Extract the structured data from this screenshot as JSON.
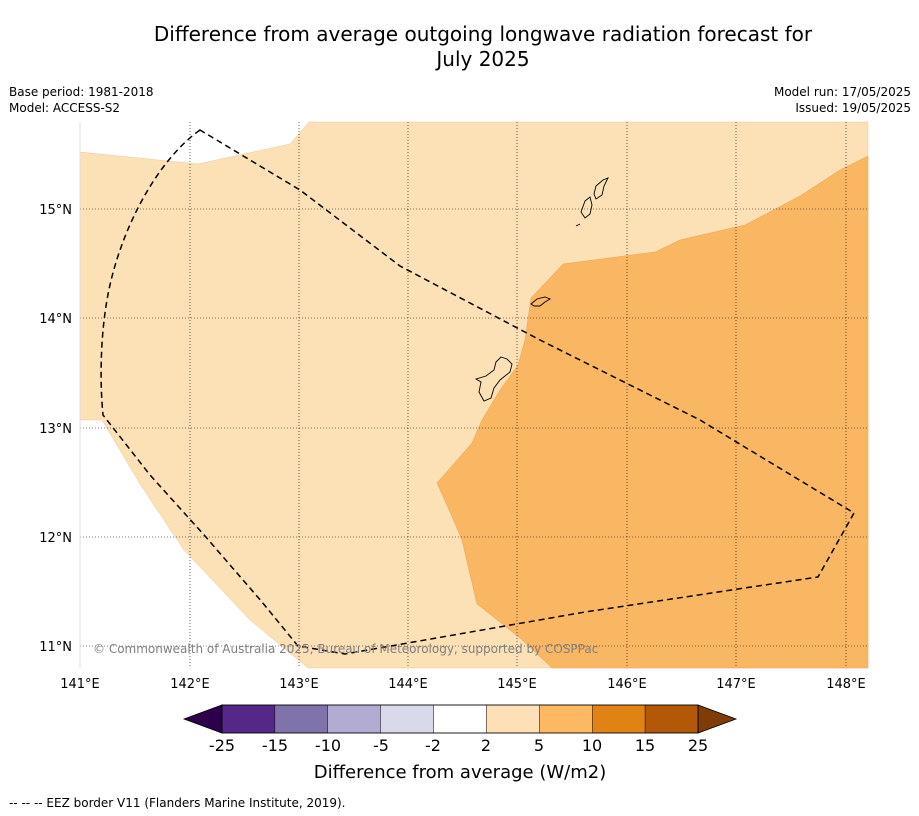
{
  "title": {
    "line1": "Difference from average outgoing longwave radiation forecast for",
    "line2": "July 2025"
  },
  "meta": {
    "base_period": "Base period: 1981-2018",
    "model": "Model: ACCESS-S2",
    "model_run": "Model run: 17/05/2025",
    "issued": "Issued: 19/05/2025"
  },
  "map": {
    "lon_ticks": [
      "141°E",
      "142°E",
      "143°E",
      "144°E",
      "145°E",
      "146°E",
      "147°E",
      "148°E"
    ],
    "lat_ticks": [
      "15°N",
      "14°N",
      "13°N",
      "12°N",
      "11°N"
    ],
    "copyright": "© Commonwealth of Australia 2025, Bureau of Meteorology, supported by COSPPac",
    "colors": {
      "band_2_5": "#fce0b6",
      "band_5_10": "#f9b764",
      "coast": "#000000",
      "eez": "#000000"
    }
  },
  "colorbar": {
    "labels": [
      "-25",
      "-15",
      "-10",
      "-5",
      "-2",
      "2",
      "5",
      "10",
      "15",
      "25"
    ],
    "colors": [
      "#2d004b",
      "#542788",
      "#8073ac",
      "#b2abd2",
      "#d8daeb",
      "#ffffff",
      "#fee0b6",
      "#fdb863",
      "#e08214",
      "#b35806",
      "#7f3b08"
    ],
    "label": "Difference from average (W/m2)"
  },
  "footnote": "--  --  -- EEZ border V11 (Flanders Marine Institute, 2019)."
}
